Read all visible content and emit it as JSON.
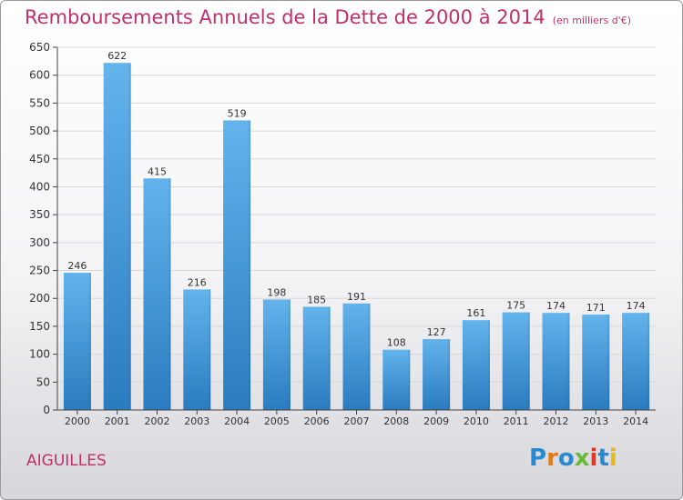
{
  "title": "Remboursements Annuels de la Dette de 2000 à 2014",
  "subtitle": "(en milliers d'€)",
  "city": "AIGUILLES",
  "logo_text": "Proxiti",
  "colors": {
    "title": "#c0306a",
    "bar_light": "#63b3ec",
    "bar_dark": "#2a7cc0",
    "axis": "#444444",
    "grid": "#d8d8d8"
  },
  "chart_data": {
    "type": "bar",
    "title": "Remboursements Annuels de la Dette de 2000 à 2014",
    "xlabel": "",
    "ylabel": "en milliers d'€",
    "categories": [
      "2000",
      "2001",
      "2002",
      "2003",
      "2004",
      "2005",
      "2006",
      "2007",
      "2008",
      "2009",
      "2010",
      "2011",
      "2012",
      "2013",
      "2014"
    ],
    "values": [
      246,
      622,
      415,
      216,
      519,
      198,
      185,
      191,
      108,
      127,
      161,
      175,
      174,
      171,
      174
    ],
    "ylim": [
      0,
      650
    ],
    "yticks": [
      0,
      50,
      100,
      150,
      200,
      250,
      300,
      350,
      400,
      450,
      500,
      550,
      600,
      650
    ],
    "grid": true
  }
}
